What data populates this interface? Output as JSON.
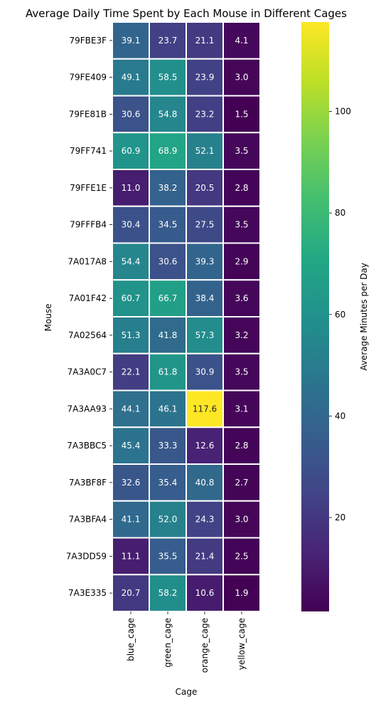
{
  "chart_data": {
    "type": "heatmap",
    "title": "Average Daily Time Spent by Each Mouse in Different Cages",
    "xlabel": "Cage",
    "ylabel": "Mouse",
    "columns": [
      "blue_cage",
      "green_cage",
      "orange_cage",
      "yellow_cage"
    ],
    "rows": [
      "79FBE3F",
      "79FE409",
      "79FE81B",
      "79FF741",
      "79FFE1E",
      "79FFFB4",
      "7A017A8",
      "7A01F42",
      "7A02564",
      "7A3A0C7",
      "7A3AA93",
      "7A3BBC5",
      "7A3BF8F",
      "7A3BFA4",
      "7A3DD59",
      "7A3E335"
    ],
    "values": [
      [
        39.1,
        23.7,
        21.1,
        4.1
      ],
      [
        49.1,
        58.5,
        23.9,
        3.0
      ],
      [
        30.6,
        54.8,
        23.2,
        1.5
      ],
      [
        60.9,
        68.9,
        52.1,
        3.5
      ],
      [
        11.0,
        38.2,
        20.5,
        2.8
      ],
      [
        30.4,
        34.5,
        27.5,
        3.5
      ],
      [
        54.4,
        30.6,
        39.3,
        2.9
      ],
      [
        60.7,
        66.7,
        38.4,
        3.6
      ],
      [
        51.3,
        41.8,
        57.3,
        3.2
      ],
      [
        22.1,
        61.8,
        30.9,
        3.5
      ],
      [
        44.1,
        46.1,
        117.6,
        3.1
      ],
      [
        45.4,
        33.3,
        12.6,
        2.8
      ],
      [
        32.6,
        35.4,
        40.8,
        2.7
      ],
      [
        41.1,
        52.0,
        24.3,
        3.0
      ],
      [
        11.1,
        35.5,
        21.4,
        2.5
      ],
      [
        20.7,
        58.2,
        10.6,
        1.9
      ]
    ],
    "colorbar": {
      "label": "Average Minutes per Day",
      "ticks": [
        20,
        40,
        60,
        80,
        100
      ],
      "vmin": 1.5,
      "vmax": 117.6,
      "colormap": "viridis"
    },
    "grid": false,
    "legend": "colorbar-right"
  }
}
